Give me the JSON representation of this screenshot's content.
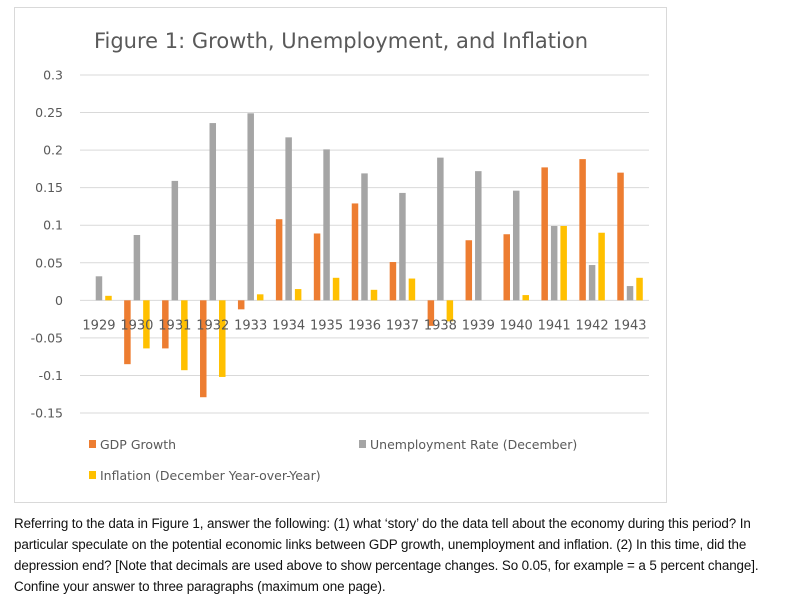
{
  "chart_data": {
    "type": "bar",
    "title": "Figure 1: Growth, Unemployment, and Inflation",
    "xlabel": "",
    "ylabel": "",
    "ylim": [
      -0.15,
      0.3
    ],
    "yticks": [
      "0.3",
      "0.25",
      "0.2",
      "0.15",
      "0.1",
      "0.05",
      "0",
      "-0.05",
      "-0.1",
      "-0.15"
    ],
    "ytick_values": [
      0.3,
      0.25,
      0.2,
      0.15,
      0.1,
      0.05,
      0,
      -0.05,
      -0.1,
      -0.15
    ],
    "grid": true,
    "legend_position": "bottom",
    "categories": [
      "1929",
      "1930",
      "1931",
      "1932",
      "1933",
      "1934",
      "1935",
      "1936",
      "1937",
      "1938",
      "1939",
      "1940",
      "1941",
      "1942",
      "1943"
    ],
    "series": [
      {
        "name": "GDP Growth",
        "color": "#ed7d31",
        "values": [
          0,
          -0.085,
          -0.064,
          -0.129,
          -0.012,
          0.108,
          0.089,
          0.129,
          0.051,
          -0.034,
          0.08,
          0.088,
          0.177,
          0.188,
          0.17
        ]
      },
      {
        "name": "Unemployment Rate (December)",
        "color": "#a5a5a5",
        "values": [
          0.032,
          0.087,
          0.159,
          0.236,
          0.249,
          0.217,
          0.201,
          0.169,
          0.143,
          0.19,
          0.172,
          0.146,
          0.099,
          0.047,
          0.019
        ]
      },
      {
        "name": "Inflation (December Year-over-Year)",
        "color": "#ffc000",
        "values": [
          0.006,
          -0.064,
          -0.093,
          -0.102,
          0.008,
          0.015,
          0.03,
          0.014,
          0.029,
          -0.028,
          0,
          0.007,
          0.099,
          0.09,
          0.03
        ]
      }
    ]
  },
  "question": {
    "text": "Referring to the data in Figure 1, answer the following: (1) what ‘story’ do the data tell about the economy during this period? In particular speculate on the potential economic links between GDP growth, unemployment and inflation. (2) In this time, did the depression end? [Note that decimals are used above to show percentage changes.  So 0.05, for example = a 5 percent change]. Confine your answer to three paragraphs (maximum one page)."
  }
}
